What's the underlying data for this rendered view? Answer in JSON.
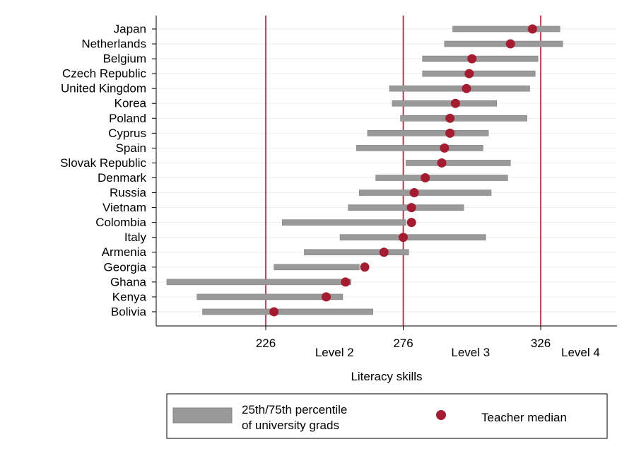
{
  "chart_data": {
    "type": "range-dot",
    "xlabel": "Literacy skills",
    "xticks": [
      226,
      276,
      326
    ],
    "xlim": [
      186,
      354
    ],
    "reference_lines": [
      {
        "value": 226,
        "color": "#c8102e"
      },
      {
        "value": 276,
        "color": "#c8102e"
      },
      {
        "value": 326,
        "color": "#c8102e"
      }
    ],
    "level_labels": [
      {
        "label": "Level 2",
        "x": 251
      },
      {
        "label": "Level 3",
        "x": 300.5
      },
      {
        "label": "Level 4",
        "x": 340.5
      }
    ],
    "categories": [
      "Japan",
      "Netherlands",
      "Belgium",
      "Czech Republic",
      "United Kingdom",
      "Korea",
      "Poland",
      "Cyprus",
      "Spain",
      "Slovak Republic",
      "Denmark",
      "Russia",
      "Vietnam",
      "Colombia",
      "Italy",
      "Armenia",
      "Georgia",
      "Ghana",
      "Kenya",
      "Bolivia"
    ],
    "series": [
      {
        "name": "25th/75th percentile of university grads",
        "color": "#999999",
        "low": [
          294,
          291,
          283,
          283,
          271,
          272,
          275,
          263,
          259,
          277,
          266,
          260,
          256,
          232,
          253,
          240,
          229,
          190,
          201,
          203
        ],
        "high": [
          333,
          334,
          325,
          324,
          322,
          310,
          321,
          307,
          305,
          315,
          314,
          308,
          298,
          277,
          306,
          278,
          260,
          257,
          254,
          265
        ]
      },
      {
        "name": "Teacher median",
        "color": "#a51c30",
        "values": [
          323,
          315,
          301,
          300,
          299,
          295,
          293,
          293,
          291,
          290,
          284,
          280,
          279,
          279,
          276,
          269,
          262,
          255,
          248,
          229
        ]
      }
    ],
    "legend": {
      "position": "bottom",
      "items": [
        {
          "label_line1": "25th/75th percentile",
          "label_line2": "of university grads",
          "kind": "bar"
        },
        {
          "label_line1": "Teacher median",
          "label_line2": "",
          "kind": "dot"
        }
      ]
    },
    "grid": true
  }
}
